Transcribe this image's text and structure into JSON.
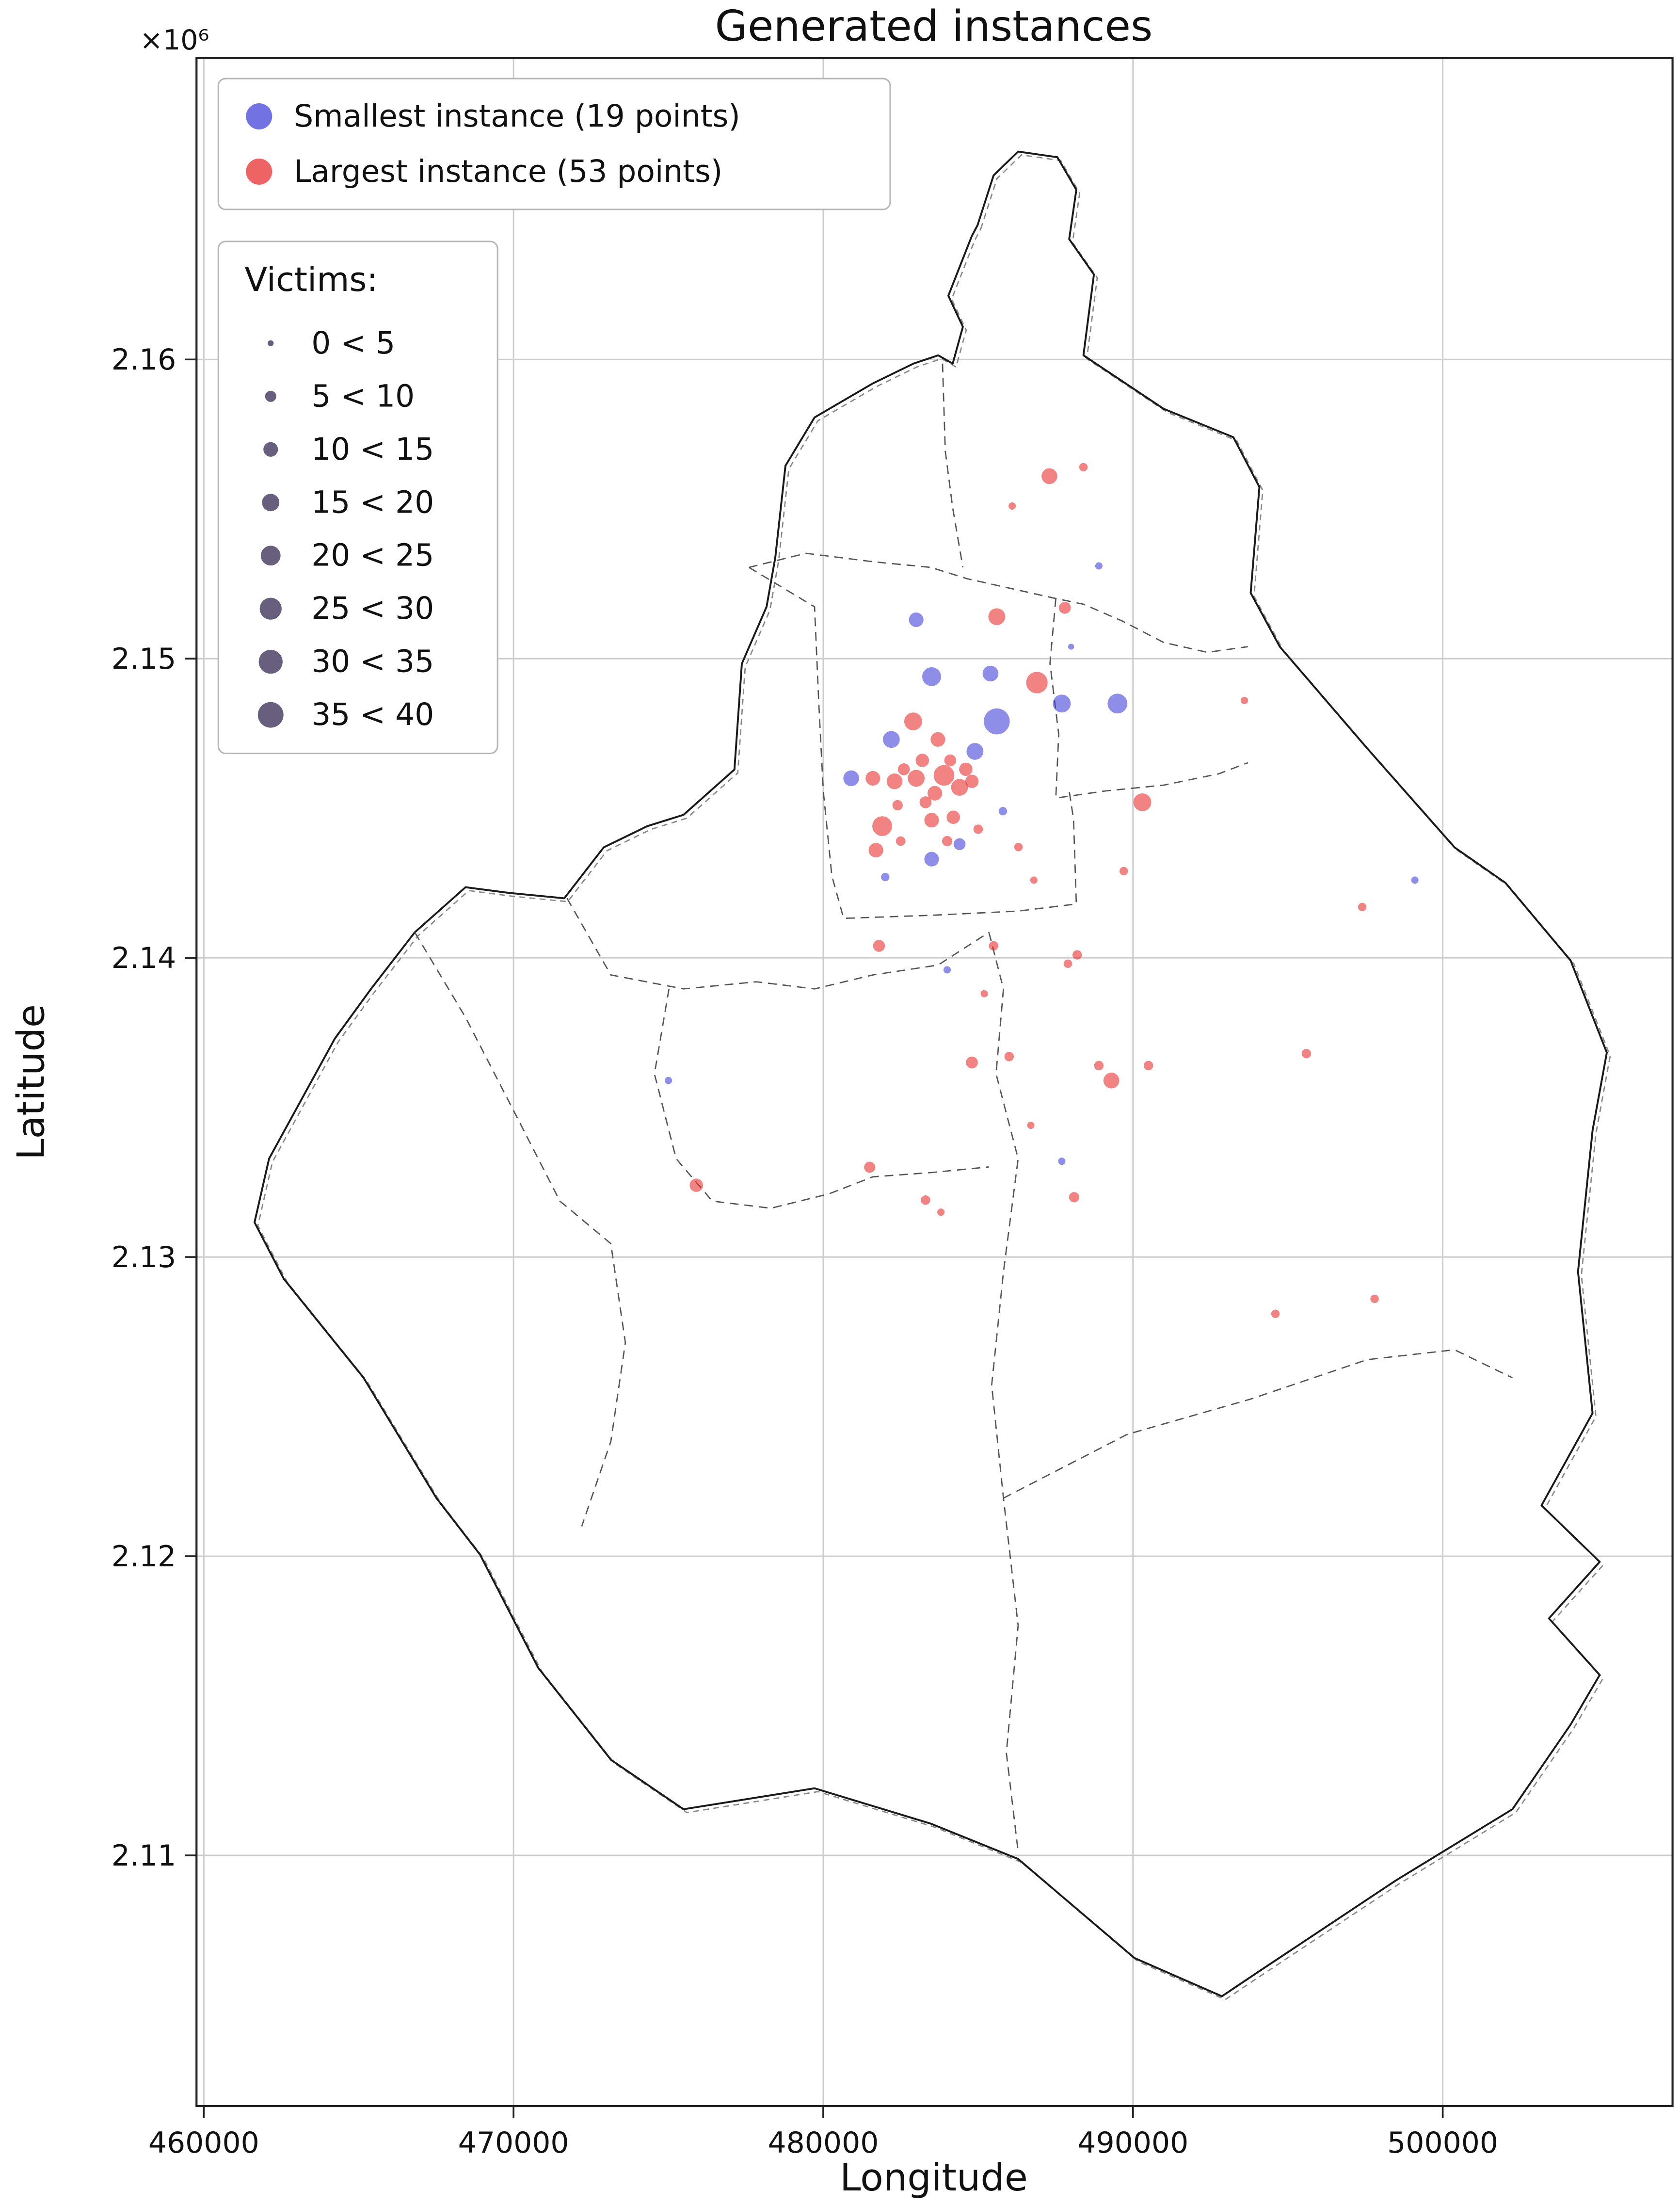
{
  "chart_data": {
    "type": "scatter",
    "title": "Generated instances",
    "xlabel": "Longitude",
    "ylabel": "Latitude",
    "offset_text": "×10⁶",
    "grid": true,
    "legend_position": "upper left",
    "xlim": [
      459765,
      507420
    ],
    "ylim": [
      2101620,
      2170070
    ],
    "x_ticks": {
      "values": [
        460000,
        470000,
        480000,
        490000,
        500000
      ],
      "labels": [
        "460000",
        "470000",
        "480000",
        "490000",
        "500000"
      ]
    },
    "y_ticks": {
      "values": [
        2110000,
        2120000,
        2130000,
        2140000,
        2150000,
        2160000
      ],
      "labels": [
        "2.11",
        "2.12",
        "2.13",
        "2.14",
        "2.15",
        "2.16"
      ]
    },
    "colors": {
      "smallest": "#4343d9",
      "largest": "#e83030",
      "legend_dot": "#4d4266",
      "grid": "#cccccc",
      "boundary": "#1a1a1a",
      "boundary_shadow": "#888888",
      "inner_border": "#555555",
      "frame": "#222222"
    },
    "series": [
      {
        "id": "smallest",
        "name": "Smallest instance (19 points)",
        "color": "smallest",
        "points": [
          [
            483000,
            2151300,
            12
          ],
          [
            488900,
            2153100,
            3
          ],
          [
            488000,
            2150400,
            2
          ],
          [
            483500,
            2149400,
            20
          ],
          [
            485400,
            2149500,
            14
          ],
          [
            485600,
            2147900,
            38
          ],
          [
            487700,
            2148500,
            18
          ],
          [
            489500,
            2148500,
            22
          ],
          [
            482200,
            2147300,
            16
          ],
          [
            484900,
            2146900,
            16
          ],
          [
            480900,
            2146000,
            14
          ],
          [
            485800,
            2144900,
            4
          ],
          [
            484400,
            2143800,
            8
          ],
          [
            483500,
            2143300,
            12
          ],
          [
            482000,
            2142700,
            4
          ],
          [
            499100,
            2142600,
            3
          ],
          [
            484000,
            2139600,
            3
          ],
          [
            475000,
            2135900,
            3
          ],
          [
            487700,
            2133200,
            3
          ]
        ]
      },
      {
        "id": "largest",
        "name": "Largest instance (53 points)",
        "color": "largest",
        "points": [
          [
            487300,
            2156100,
            14
          ],
          [
            488400,
            2156400,
            4
          ],
          [
            486100,
            2155100,
            3
          ],
          [
            485600,
            2151400,
            16
          ],
          [
            487800,
            2151700,
            8
          ],
          [
            486900,
            2149200,
            26
          ],
          [
            482900,
            2147900,
            18
          ],
          [
            483700,
            2147300,
            12
          ],
          [
            481600,
            2146000,
            12
          ],
          [
            482300,
            2145900,
            14
          ],
          [
            483000,
            2146000,
            16
          ],
          [
            483900,
            2146100,
            24
          ],
          [
            484400,
            2145700,
            16
          ],
          [
            483600,
            2145500,
            12
          ],
          [
            484800,
            2145900,
            10
          ],
          [
            481900,
            2144400,
            22
          ],
          [
            483500,
            2144600,
            12
          ],
          [
            484200,
            2144700,
            10
          ],
          [
            481700,
            2143600,
            12
          ],
          [
            490300,
            2145200,
            18
          ],
          [
            486800,
            2142600,
            3
          ],
          [
            489700,
            2142900,
            4
          ],
          [
            493600,
            2148600,
            3
          ],
          [
            497400,
            2141700,
            4
          ],
          [
            481800,
            2140400,
            8
          ],
          [
            485500,
            2140400,
            5
          ],
          [
            488200,
            2140100,
            5
          ],
          [
            484800,
            2136500,
            8
          ],
          [
            486000,
            2136700,
            5
          ],
          [
            488900,
            2136400,
            5
          ],
          [
            489300,
            2135900,
            14
          ],
          [
            490500,
            2136400,
            5
          ],
          [
            495600,
            2136800,
            5
          ],
          [
            486700,
            2134400,
            3
          ],
          [
            481500,
            2133000,
            7
          ],
          [
            475900,
            2132400,
            10
          ],
          [
            483300,
            2131900,
            5
          ],
          [
            483800,
            2131500,
            3
          ],
          [
            488100,
            2132000,
            6
          ],
          [
            494600,
            2128100,
            4
          ],
          [
            497800,
            2128600,
            4
          ],
          [
            483200,
            2146600,
            10
          ],
          [
            484100,
            2146600,
            8
          ],
          [
            482600,
            2146300,
            8
          ],
          [
            484600,
            2146300,
            10
          ],
          [
            483300,
            2145200,
            8
          ],
          [
            482400,
            2145100,
            6
          ],
          [
            484000,
            2143900,
            6
          ],
          [
            485000,
            2144300,
            5
          ],
          [
            482500,
            2143900,
            5
          ],
          [
            486300,
            2143700,
            4
          ],
          [
            487900,
            2139800,
            4
          ],
          [
            485200,
            2138800,
            3
          ]
        ]
      }
    ],
    "size_legend": {
      "title": "Victims:",
      "bins": [
        {
          "label": "0 < 5",
          "v": 2
        },
        {
          "label": "5 < 10",
          "v": 7
        },
        {
          "label": "10 < 15",
          "v": 12
        },
        {
          "label": "15 < 20",
          "v": 17
        },
        {
          "label": "20 < 25",
          "v": 22
        },
        {
          "label": "25 < 30",
          "v": 27
        },
        {
          "label": "30 < 35",
          "v": 32
        },
        {
          "label": "35 < 40",
          "v": 37
        }
      ]
    },
    "map": {
      "boundary": [
        [
          484980,
          2164490
        ],
        [
          485500,
          2166150
        ],
        [
          486290,
          2166950
        ],
        [
          487560,
          2166760
        ],
        [
          488170,
          2165670
        ],
        [
          487940,
          2164020
        ],
        [
          488740,
          2162840
        ],
        [
          488400,
          2160140
        ],
        [
          490990,
          2158350
        ],
        [
          493240,
          2157400
        ],
        [
          494080,
          2155740
        ],
        [
          493800,
          2152200
        ],
        [
          494740,
          2150400
        ],
        [
          497560,
          2147000
        ],
        [
          500380,
          2143690
        ],
        [
          502020,
          2142510
        ],
        [
          504130,
          2139910
        ],
        [
          505300,
          2136830
        ],
        [
          504840,
          2134230
        ],
        [
          504370,
          2129510
        ],
        [
          504840,
          2124780
        ],
        [
          503190,
          2121700
        ],
        [
          505070,
          2119810
        ],
        [
          503430,
          2117920
        ],
        [
          505070,
          2116030
        ],
        [
          504130,
          2114370
        ],
        [
          502250,
          2111540
        ],
        [
          498500,
          2109170
        ],
        [
          494040,
          2106100
        ],
        [
          492870,
          2105290
        ],
        [
          490050,
          2106570
        ],
        [
          486290,
          2109880
        ],
        [
          483470,
          2111060
        ],
        [
          479720,
          2112240
        ],
        [
          475490,
          2111540
        ],
        [
          473150,
          2113190
        ],
        [
          470800,
          2116270
        ],
        [
          468920,
          2120050
        ],
        [
          467510,
          2121940
        ],
        [
          465160,
          2125960
        ],
        [
          462580,
          2129270
        ],
        [
          461640,
          2131160
        ],
        [
          462110,
          2133290
        ],
        [
          464230,
          2137300
        ],
        [
          465400,
          2138960
        ],
        [
          466810,
          2140850
        ],
        [
          468450,
          2142360
        ],
        [
          469860,
          2142170
        ],
        [
          471640,
          2141990
        ],
        [
          472910,
          2143690
        ],
        [
          474320,
          2144400
        ],
        [
          475490,
          2144780
        ],
        [
          477130,
          2146290
        ],
        [
          477370,
          2149830
        ],
        [
          478170,
          2151730
        ],
        [
          478450,
          2153380
        ],
        [
          478780,
          2156450
        ],
        [
          479720,
          2158060
        ],
        [
          481600,
          2159200
        ],
        [
          482910,
          2159860
        ],
        [
          483710,
          2160140
        ],
        [
          484180,
          2159860
        ],
        [
          484510,
          2161090
        ],
        [
          484040,
          2162130
        ],
        [
          484790,
          2164110
        ]
      ],
      "internal_borders": [
        [
          [
            477600,
            2153050
          ],
          [
            479440,
            2153520
          ],
          [
            481600,
            2153240
          ],
          [
            483470,
            2153050
          ],
          [
            484650,
            2152670
          ],
          [
            486290,
            2152290
          ],
          [
            487510,
            2152010
          ],
          [
            488400,
            2151820
          ],
          [
            489670,
            2151250
          ],
          [
            490990,
            2150540
          ],
          [
            492400,
            2150210
          ],
          [
            493710,
            2150400
          ]
        ],
        [
          [
            487510,
            2152010
          ],
          [
            487320,
            2149840
          ],
          [
            487600,
            2147470
          ],
          [
            487510,
            2145340
          ],
          [
            489110,
            2145580
          ],
          [
            490990,
            2145770
          ],
          [
            492770,
            2146150
          ],
          [
            493710,
            2146520
          ]
        ],
        [
          [
            483850,
            2159860
          ],
          [
            483940,
            2156930
          ],
          [
            484180,
            2155040
          ],
          [
            484510,
            2153050
          ]
        ],
        [
          [
            471730,
            2141990
          ],
          [
            473140,
            2139430
          ],
          [
            475490,
            2138960
          ],
          [
            477840,
            2139200
          ],
          [
            479720,
            2138960
          ],
          [
            481600,
            2139430
          ],
          [
            483710,
            2139760
          ],
          [
            485350,
            2140850
          ]
        ],
        [
          [
            485350,
            2140850
          ],
          [
            485820,
            2138960
          ],
          [
            485580,
            2136120
          ],
          [
            486290,
            2133290
          ],
          [
            485820,
            2129500
          ],
          [
            485440,
            2125720
          ],
          [
            485820,
            2121940
          ],
          [
            486290,
            2117680
          ],
          [
            485910,
            2113430
          ],
          [
            486290,
            2110120
          ]
        ],
        [
          [
            485820,
            2121940
          ],
          [
            489810,
            2124070
          ],
          [
            493800,
            2125250
          ],
          [
            497560,
            2126570
          ],
          [
            500380,
            2126900
          ],
          [
            502250,
            2125960
          ]
        ],
        [
          [
            475020,
            2138960
          ],
          [
            474550,
            2136120
          ],
          [
            475250,
            2133290
          ],
          [
            476420,
            2131870
          ],
          [
            478310,
            2131630
          ],
          [
            480190,
            2132110
          ],
          [
            481600,
            2132680
          ],
          [
            483470,
            2132820
          ],
          [
            485350,
            2133010
          ]
        ],
        [
          [
            466810,
            2140850
          ],
          [
            468450,
            2138010
          ],
          [
            470100,
            2134700
          ],
          [
            471500,
            2131870
          ],
          [
            473140,
            2130450
          ],
          [
            473610,
            2127140
          ],
          [
            473140,
            2123830
          ],
          [
            472200,
            2121000
          ]
        ],
        [
          [
            477600,
            2153050
          ],
          [
            479720,
            2151730
          ],
          [
            479860,
            2148420
          ],
          [
            480000,
            2145580
          ],
          [
            480280,
            2142740
          ],
          [
            480660,
            2141320
          ],
          [
            483470,
            2141420
          ],
          [
            486290,
            2141560
          ],
          [
            488170,
            2141800
          ],
          [
            488080,
            2144630
          ],
          [
            487940,
            2145580
          ]
        ]
      ]
    }
  }
}
